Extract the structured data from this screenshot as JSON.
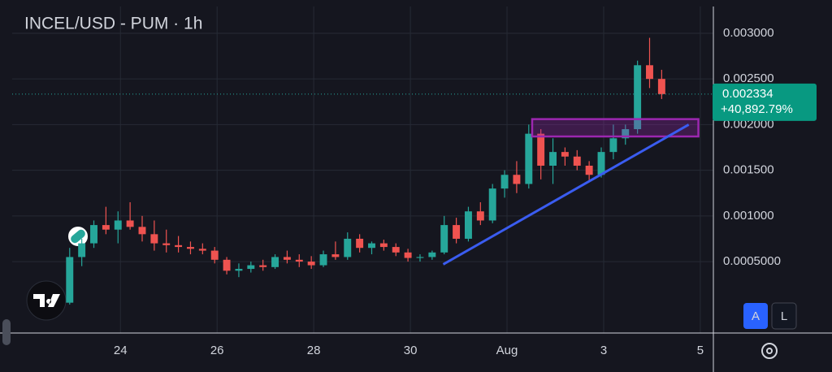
{
  "chart_data": {
    "type": "candlestick",
    "title": "INCEL/USD - PUM · 1h",
    "x": [
      22.95,
      23.2,
      23.45,
      23.7,
      23.95,
      24.2,
      24.45,
      24.7,
      24.95,
      25.2,
      25.45,
      25.7,
      25.95,
      26.2,
      26.45,
      26.7,
      26.95,
      27.2,
      27.45,
      27.7,
      27.95,
      28.2,
      28.45,
      28.7,
      28.95,
      29.2,
      29.45,
      29.7,
      29.95,
      30.2,
      30.45,
      30.7,
      30.95,
      31.2,
      31.45,
      31.7,
      31.95,
      32.2,
      32.45,
      32.7,
      32.95,
      33.2,
      33.45,
      33.7,
      33.95,
      34.2,
      34.45,
      34.7,
      34.95,
      35.2
    ],
    "open": [
      5e-05,
      0.00055,
      0.0007,
      0.0009,
      0.00085,
      0.00095,
      0.00088,
      0.0008,
      0.0007,
      0.00068,
      0.00066,
      0.00064,
      0.00062,
      0.00052,
      0.0004,
      0.00042,
      0.00046,
      0.00044,
      0.00055,
      0.00052,
      0.0005,
      0.00046,
      0.00058,
      0.00055,
      0.00075,
      0.00065,
      0.0007,
      0.00066,
      0.0006,
      0.00054,
      0.00055,
      0.0006,
      0.0009,
      0.00075,
      0.00105,
      0.00095,
      0.0013,
      0.00145,
      0.00135,
      0.0019,
      0.00155,
      0.0017,
      0.00165,
      0.00155,
      0.00145,
      0.0017,
      0.00185,
      0.00195,
      0.00265,
      0.0025
    ],
    "high": [
      0.00065,
      0.00075,
      0.00095,
      0.0011,
      0.00105,
      0.00115,
      0.001,
      0.00095,
      0.00085,
      0.00078,
      0.00072,
      0.0007,
      0.00066,
      0.00055,
      0.00048,
      0.0005,
      0.00052,
      0.00058,
      0.00062,
      0.00058,
      0.00056,
      0.00062,
      0.00072,
      0.00082,
      0.0008,
      0.00072,
      0.00074,
      0.0007,
      0.00064,
      0.00058,
      0.00062,
      0.001,
      0.00098,
      0.0011,
      0.00115,
      0.00135,
      0.0015,
      0.0016,
      0.002,
      0.00195,
      0.00185,
      0.00175,
      0.00172,
      0.0016,
      0.00175,
      0.002,
      0.002,
      0.0027,
      0.00295,
      0.0026
    ],
    "low": [
      3e-05,
      0.00045,
      0.00065,
      0.0008,
      0.0007,
      0.00085,
      0.00072,
      0.00062,
      0.0006,
      0.0006,
      0.00058,
      0.00058,
      0.00048,
      0.00036,
      0.00033,
      0.00038,
      0.0004,
      0.00042,
      0.00048,
      0.00044,
      0.00042,
      0.00044,
      0.00052,
      0.00052,
      0.0006,
      0.00058,
      0.00062,
      0.00056,
      0.0005,
      0.0005,
      0.00052,
      0.00058,
      0.0007,
      0.00072,
      0.0009,
      0.00092,
      0.0012,
      0.00125,
      0.0013,
      0.0014,
      0.00135,
      0.00155,
      0.0015,
      0.00138,
      0.00142,
      0.00162,
      0.00178,
      0.0019,
      0.0024,
      0.00228
    ],
    "close": [
      0.00055,
      0.0007,
      0.0009,
      0.00085,
      0.00095,
      0.00088,
      0.0008,
      0.0007,
      0.00068,
      0.00066,
      0.00064,
      0.00062,
      0.00052,
      0.0004,
      0.00042,
      0.00046,
      0.00044,
      0.00055,
      0.00052,
      0.0005,
      0.00046,
      0.00058,
      0.00055,
      0.00075,
      0.00065,
      0.0007,
      0.00066,
      0.0006,
      0.00054,
      0.00055,
      0.0006,
      0.0009,
      0.00075,
      0.00105,
      0.00095,
      0.0013,
      0.00145,
      0.00135,
      0.0019,
      0.00155,
      0.0017,
      0.00165,
      0.00155,
      0.00145,
      0.0017,
      0.00185,
      0.00195,
      0.00265,
      0.0025,
      0.002334
    ],
    "up_color": "#26a69a",
    "down_color": "#ef5350",
    "xlim": [
      21.76,
      36.27
    ],
    "xticks": [
      24,
      26,
      28,
      30,
      {
        "value": 32,
        "label": "Aug"
      },
      {
        "value": 34,
        "label": "3"
      },
      {
        "value": 36,
        "label": "5"
      }
    ],
    "ylim": [
      -0.000282,
      0.003293
    ],
    "yticks": [
      {
        "value": 0.0005,
        "label": "0.0005000"
      },
      {
        "value": 0.001,
        "label": "0.001000"
      },
      {
        "value": 0.0015,
        "label": "0.001500"
      },
      {
        "value": 0.002,
        "label": "0.002000"
      },
      {
        "value": 0.0025,
        "label": "0.002500"
      },
      {
        "value": 0.003,
        "label": "0.003000"
      }
    ],
    "grid": true,
    "last_price": {
      "value": 0.002334,
      "label": "0.002334"
    },
    "change_label": "+40,892.79%",
    "trendline": {
      "x": [
        30.68,
        35.76
      ],
      "y": [
        0.00047,
        0.002
      ],
      "color": "#3a5cf0"
    },
    "zone": {
      "x": [
        32.52,
        35.96
      ],
      "y": [
        0.00187,
        0.00206
      ],
      "color": "#9c27b0"
    },
    "buttons": [
      "A",
      "L"
    ]
  }
}
